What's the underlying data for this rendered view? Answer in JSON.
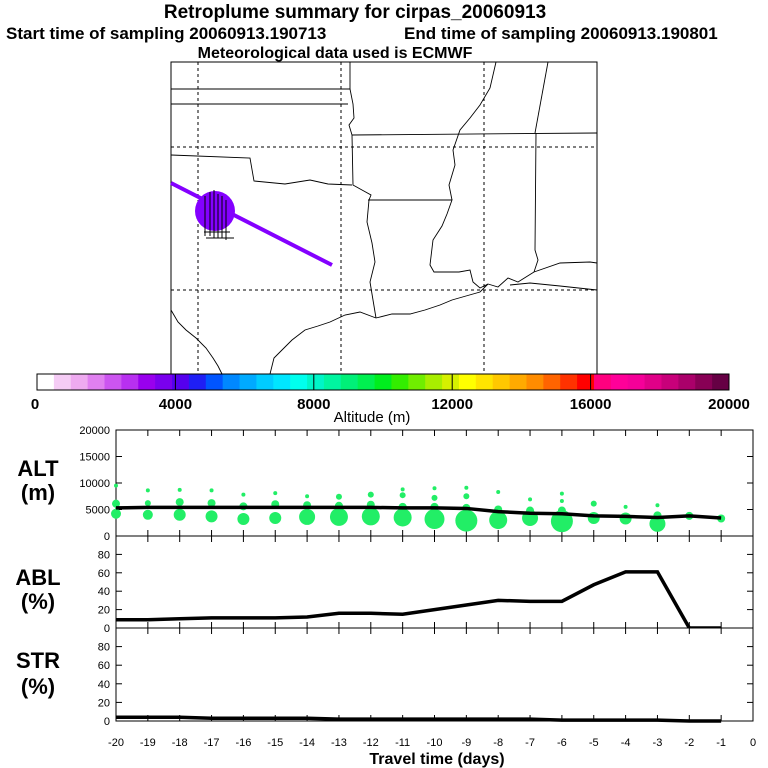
{
  "header": {
    "title": "Retroplume summary for cirpas_20060913",
    "start_label": "Start time of sampling 20060913.190713",
    "end_label": "End time of sampling 20060913.190801",
    "met_label": "Meteorological data used is ECMWF"
  },
  "colorbar": {
    "label": "Altitude (m)",
    "ticks": [
      "0",
      "4000",
      "8000",
      "12000",
      "16000",
      "20000"
    ],
    "colors": [
      "#ffffff",
      "#f5ccf5",
      "#eeaaf0",
      "#e080f0",
      "#cc55f0",
      "#b830f0",
      "#9900ee",
      "#7a00ee",
      "#5500ee",
      "#1f1ff5",
      "#0055ff",
      "#0088ff",
      "#00aaff",
      "#00ccff",
      "#00e6ff",
      "#00ffee",
      "#00f5c8",
      "#00f5a0",
      "#00f078",
      "#00f050",
      "#00ee1e",
      "#33ee00",
      "#70ee00",
      "#a8ee00",
      "#d6f000",
      "#ffff00",
      "#ffe400",
      "#ffc800",
      "#ffaa00",
      "#ff8c00",
      "#ff6400",
      "#ff3200",
      "#ff0000",
      "#ff007f",
      "#ff0099",
      "#f50099",
      "#e00088",
      "#c8007a",
      "#aa006a",
      "#880055",
      "#660044"
    ]
  },
  "colors": {
    "plume": "#8400ff",
    "bubble": "#22ee66",
    "line": "#000000"
  },
  "chart_data": [
    {
      "type": "scatter",
      "panel": "ALT",
      "ylabel": "ALT (m)",
      "ylim": [
        0,
        20000
      ],
      "yticks": [
        0,
        5000,
        10000,
        15000,
        20000
      ],
      "x": [
        -20,
        -19,
        -18,
        -17,
        -16,
        -15,
        -14,
        -13,
        -12,
        -11,
        -10,
        -9,
        -8,
        -7,
        -6,
        -5,
        -4,
        -3,
        -2,
        -1
      ],
      "mean_altitude": [
        5300,
        5400,
        5400,
        5400,
        5400,
        5400,
        5400,
        5400,
        5400,
        5300,
        5300,
        5200,
        4600,
        4300,
        4200,
        3800,
        3700,
        3500,
        3800,
        3400
      ],
      "bubbles": [
        [
          [
            -20,
            6100,
            4
          ],
          [
            -20,
            4200,
            5
          ],
          [
            -20,
            9500,
            2
          ]
        ],
        [
          [
            -19,
            4000,
            5
          ],
          [
            -19,
            6200,
            3
          ],
          [
            -19,
            8600,
            2
          ]
        ],
        [
          [
            -18,
            4000,
            6
          ],
          [
            -18,
            6400,
            4
          ],
          [
            -18,
            8700,
            2
          ]
        ],
        [
          [
            -17,
            3700,
            6
          ],
          [
            -17,
            6200,
            4
          ],
          [
            -17,
            8600,
            2
          ]
        ],
        [
          [
            -16,
            3200,
            6
          ],
          [
            -16,
            5600,
            4
          ],
          [
            -16,
            7800,
            2
          ]
        ],
        [
          [
            -15,
            3400,
            6
          ],
          [
            -15,
            6000,
            4
          ],
          [
            -15,
            8100,
            2
          ]
        ],
        [
          [
            -14,
            3600,
            8
          ],
          [
            -14,
            5800,
            4
          ],
          [
            -14,
            7500,
            2
          ]
        ],
        [
          [
            -13,
            3600,
            9
          ],
          [
            -13,
            5700,
            4
          ],
          [
            -13,
            7400,
            3
          ]
        ],
        [
          [
            -12,
            3700,
            9
          ],
          [
            -12,
            5900,
            4
          ],
          [
            -12,
            7800,
            3
          ]
        ],
        [
          [
            -11,
            3500,
            9
          ],
          [
            -11,
            5500,
            4
          ],
          [
            -11,
            7700,
            3
          ],
          [
            -11,
            8800,
            2
          ]
        ],
        [
          [
            -10,
            3200,
            10
          ],
          [
            -10,
            5500,
            4
          ],
          [
            -10,
            7200,
            3
          ],
          [
            -10,
            9000,
            2
          ]
        ],
        [
          [
            -9,
            2900,
            11
          ],
          [
            -9,
            5300,
            4
          ],
          [
            -9,
            7500,
            3
          ],
          [
            -9,
            9100,
            2
          ]
        ],
        [
          [
            -8,
            3000,
            9
          ],
          [
            -8,
            5000,
            4
          ],
          [
            -8,
            8300,
            2
          ]
        ],
        [
          [
            -7,
            3400,
            8
          ],
          [
            -7,
            4800,
            4
          ],
          [
            -7,
            6900,
            2
          ]
        ],
        [
          [
            -6,
            2800,
            11
          ],
          [
            -6,
            4800,
            4
          ],
          [
            -6,
            6600,
            2
          ],
          [
            -6,
            8000,
            2
          ]
        ],
        [
          [
            -5,
            3400,
            6
          ],
          [
            -5,
            6100,
            3
          ]
        ],
        [
          [
            -4,
            3300,
            6
          ],
          [
            -4,
            5500,
            2
          ]
        ],
        [
          [
            -3,
            2300,
            8
          ],
          [
            -3,
            3900,
            4
          ],
          [
            -3,
            5800,
            2
          ]
        ],
        [
          [
            -2,
            3800,
            4
          ]
        ],
        [
          [
            -1,
            3300,
            4
          ]
        ]
      ]
    },
    {
      "type": "line",
      "panel": "ABL",
      "ylabel": "ABL (%)",
      "ylim": [
        0,
        100
      ],
      "yticks": [
        0,
        20,
        40,
        60,
        80
      ],
      "x": [
        -20,
        -19,
        -18,
        -17,
        -16,
        -15,
        -14,
        -13,
        -12,
        -11,
        -10,
        -9,
        -8,
        -7,
        -6,
        -5,
        -4,
        -3,
        -2,
        -1
      ],
      "values": [
        9,
        9,
        10,
        11,
        11,
        11,
        12,
        16,
        16,
        15,
        20,
        25,
        30,
        29,
        29,
        47,
        61,
        61,
        0,
        0
      ]
    },
    {
      "type": "line",
      "panel": "STR",
      "ylabel": "STR (%)",
      "ylim": [
        0,
        100
      ],
      "yticks": [
        0,
        20,
        40,
        60,
        80
      ],
      "x": [
        -20,
        -19,
        -18,
        -17,
        -16,
        -15,
        -14,
        -13,
        -12,
        -11,
        -10,
        -9,
        -8,
        -7,
        -6,
        -5,
        -4,
        -3,
        -2,
        -1
      ],
      "values": [
        4,
        4,
        4,
        3,
        3,
        3,
        3,
        2,
        2,
        2,
        2,
        2,
        2,
        2,
        1,
        1,
        1,
        1,
        0,
        0
      ],
      "xlabel": "Travel time (days)",
      "xlim": [
        -20,
        0
      ],
      "xticks": [
        "-20",
        "-19",
        "-18",
        "-17",
        "-16",
        "-15",
        "-14",
        "-13",
        "-12",
        "-11",
        "-10",
        "-9",
        "-8",
        "-7",
        "-6",
        "-5",
        "-4",
        "-3",
        "-2",
        "-1",
        "0"
      ]
    }
  ]
}
